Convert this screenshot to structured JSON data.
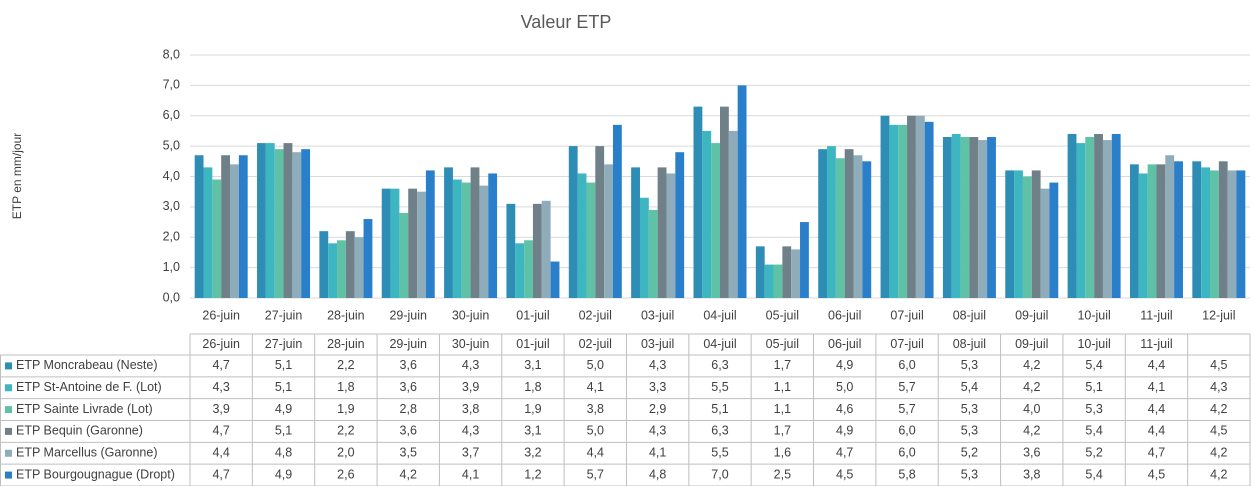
{
  "chart_data": {
    "type": "bar",
    "title": "Valeur ETP",
    "y_label": "ETP en mm/jour",
    "categories": [
      "26-juin",
      "27-juin",
      "28-juin",
      "29-juin",
      "30-juin",
      "01-juil",
      "02-juil",
      "03-juil",
      "04-juil",
      "05-juil",
      "06-juil",
      "07-juil",
      "08-juil",
      "09-juil",
      "10-juil",
      "11-juil",
      "12-juil"
    ],
    "table_columns": [
      "26-juin",
      "27-juin",
      "28-juin",
      "29-juin",
      "30-juin",
      "01-juil",
      "02-juil",
      "03-juil",
      "04-juil",
      "05-juil",
      "06-juil",
      "07-juil",
      "08-juil",
      "09-juil",
      "10-juil",
      "11-juil",
      null
    ],
    "ylim": [
      0,
      8
    ],
    "yticks": [
      {
        "value": 0,
        "label": "0,0"
      },
      {
        "value": 1,
        "label": "1,0"
      },
      {
        "value": 2,
        "label": "2,0"
      },
      {
        "value": 3,
        "label": "3,0"
      },
      {
        "value": 4,
        "label": "4,0"
      },
      {
        "value": 5,
        "label": "5,0"
      },
      {
        "value": 6,
        "label": "6,0"
      },
      {
        "value": 7,
        "label": "7,0"
      },
      {
        "value": 8,
        "label": "8,0"
      }
    ],
    "grid": true,
    "series": [
      {
        "name": "ETP Moncrabeau (Neste)",
        "color": "#2e8db5",
        "values": [
          4.7,
          5.1,
          2.2,
          3.6,
          4.3,
          3.1,
          5.0,
          4.3,
          6.3,
          1.7,
          4.9,
          6.0,
          5.3,
          4.2,
          5.4,
          4.4,
          4.5
        ],
        "value_labels": [
          "4,7",
          "5,1",
          "2,2",
          "3,6",
          "4,3",
          "3,1",
          "5,0",
          "4,3",
          "6,3",
          "1,7",
          "4,9",
          "6,0",
          "5,3",
          "4,2",
          "5,4",
          "4,4",
          "4,5"
        ]
      },
      {
        "name": "ETP St-Antoine de F. (Lot)",
        "color": "#3db6c2",
        "values": [
          4.3,
          5.1,
          1.8,
          3.6,
          3.9,
          1.8,
          4.1,
          3.3,
          5.5,
          1.1,
          5.0,
          5.7,
          5.4,
          4.2,
          5.1,
          4.1,
          4.3
        ],
        "value_labels": [
          "4,3",
          "5,1",
          "1,8",
          "3,6",
          "3,9",
          "1,8",
          "4,1",
          "3,3",
          "5,5",
          "1,1",
          "5,0",
          "5,7",
          "5,4",
          "4,2",
          "5,1",
          "4,1",
          "4,3"
        ]
      },
      {
        "name": "ETP Sainte Livrade (Lot)",
        "color": "#5fc2a6",
        "values": [
          3.9,
          4.9,
          1.9,
          2.8,
          3.8,
          1.9,
          3.8,
          2.9,
          5.1,
          1.1,
          4.6,
          5.7,
          5.3,
          4.0,
          5.3,
          4.4,
          4.2
        ],
        "value_labels": [
          "3,9",
          "4,9",
          "1,9",
          "2,8",
          "3,8",
          "1,9",
          "3,8",
          "2,9",
          "5,1",
          "1,1",
          "4,6",
          "5,7",
          "5,3",
          "4,0",
          "5,3",
          "4,4",
          "4,2"
        ]
      },
      {
        "name": "ETP Bequin (Garonne)",
        "color": "#6f8089",
        "values": [
          4.7,
          5.1,
          2.2,
          3.6,
          4.3,
          3.1,
          5.0,
          4.3,
          6.3,
          1.7,
          4.9,
          6.0,
          5.3,
          4.2,
          5.4,
          4.4,
          4.5
        ],
        "value_labels": [
          "4,7",
          "5,1",
          "2,2",
          "3,6",
          "4,3",
          "3,1",
          "5,0",
          "4,3",
          "6,3",
          "1,7",
          "4,9",
          "6,0",
          "5,3",
          "4,2",
          "5,4",
          "4,4",
          "4,5"
        ]
      },
      {
        "name": "ETP Marcellus (Garonne)",
        "color": "#8eacba",
        "values": [
          4.4,
          4.8,
          2.0,
          3.5,
          3.7,
          3.2,
          4.4,
          4.1,
          5.5,
          1.6,
          4.7,
          6.0,
          5.2,
          3.6,
          5.2,
          4.7,
          4.2
        ],
        "value_labels": [
          "4,4",
          "4,8",
          "2,0",
          "3,5",
          "3,7",
          "3,2",
          "4,4",
          "4,1",
          "5,5",
          "1,6",
          "4,7",
          "6,0",
          "5,2",
          "3,6",
          "5,2",
          "4,7",
          "4,2"
        ]
      },
      {
        "name": "ETP Bourgougnague (Dropt)",
        "color": "#2a7fca",
        "values": [
          4.7,
          4.9,
          2.6,
          4.2,
          4.1,
          1.2,
          5.7,
          4.8,
          7.0,
          2.5,
          4.5,
          5.8,
          5.3,
          3.8,
          5.4,
          4.5,
          4.2
        ],
        "value_labels": [
          "4,7",
          "4,9",
          "2,6",
          "4,2",
          "4,1",
          "1,2",
          "5,7",
          "4,8",
          "7,0",
          "2,5",
          "4,5",
          "5,8",
          "5,3",
          "3,8",
          "5,4",
          "4,5",
          "4,2"
        ]
      }
    ]
  }
}
